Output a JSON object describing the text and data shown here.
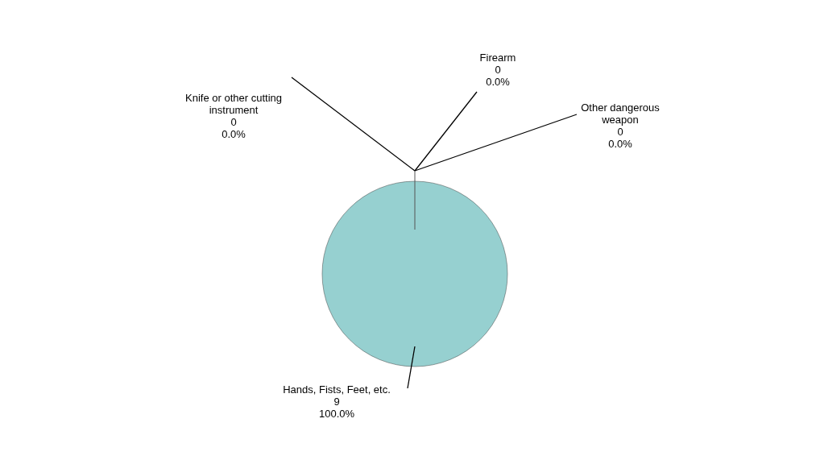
{
  "chart_data": {
    "type": "pie",
    "categories": [
      "Knife or other cutting instrument",
      "Firearm",
      "Other dangerous weapon",
      "Hands, Fists, Feet, etc."
    ],
    "values": [
      0,
      0,
      0,
      100
    ],
    "colors": [
      "#9999ff",
      "#993366",
      "#ffffcc",
      "#96d0d0"
    ],
    "annotations": [
      "0",
      "0",
      "0",
      "9"
    ],
    "value_labels": [
      "0.0%",
      "0.0%",
      "0.0%",
      "100.0%"
    ]
  }
}
